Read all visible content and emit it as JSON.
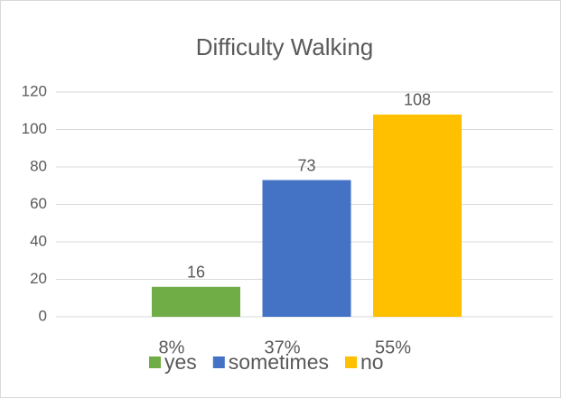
{
  "chart_data": {
    "type": "bar",
    "title": "Difficulty Walking",
    "categories": [
      "8%",
      "37%",
      "55%"
    ],
    "series": [
      {
        "name": "yes",
        "color": "#70ad47",
        "values": [
          16,
          null,
          null
        ]
      },
      {
        "name": "sometimes",
        "color": "#4472c4",
        "values": [
          null,
          73,
          null
        ]
      },
      {
        "name": "no",
        "color": "#ffc000",
        "values": [
          null,
          null,
          108
        ]
      }
    ],
    "ylim": [
      0,
      120
    ],
    "yticks": [
      0,
      20,
      40,
      60,
      80,
      100,
      120
    ],
    "grid": true,
    "legend": "bottom"
  }
}
